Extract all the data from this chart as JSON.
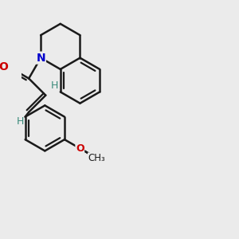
{
  "bg_color": "#ebebeb",
  "bond_color": "#1a1a1a",
  "N_color": "#0000cc",
  "O_color": "#cc0000",
  "H_color": "#3a8a7a",
  "bond_lw": 1.8,
  "inner_lw": 1.6,
  "xlim": [
    0,
    10
  ],
  "ylim": [
    0,
    10
  ]
}
